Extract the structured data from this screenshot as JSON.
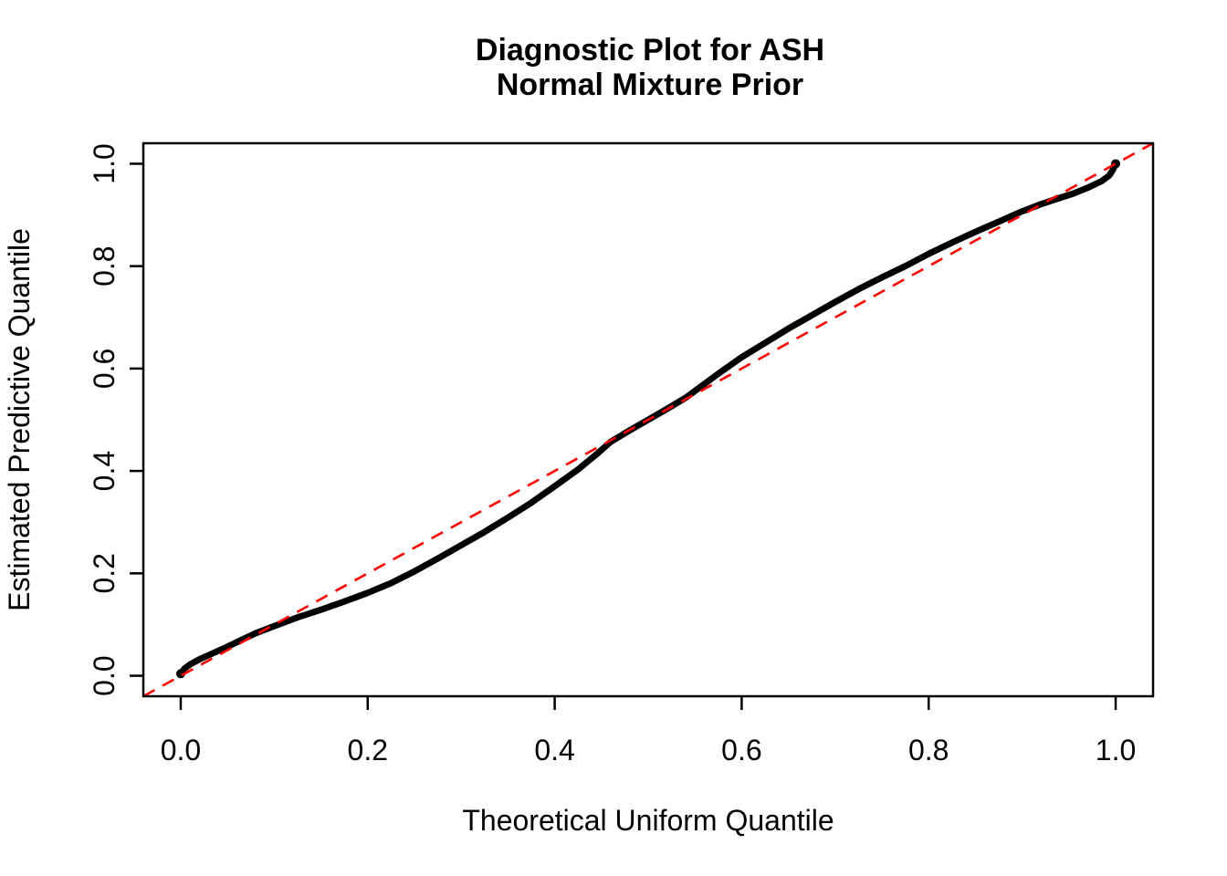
{
  "figure": {
    "title_line1": "Diagnostic Plot for ASH",
    "title_line2": "Normal Mixture Prior",
    "xlabel": "Theoretical Uniform Quantile",
    "ylabel": "Estimated Predictive Quantile"
  },
  "colors": {
    "curve": "#000000",
    "reference_line": "#ff0000",
    "frame": "#000000",
    "background": "#ffffff",
    "text": "#000000"
  },
  "chart_data": {
    "type": "scatter",
    "title": "Diagnostic Plot for ASH\nNormal Mixture Prior",
    "xlabel": "Theoretical Uniform Quantile",
    "ylabel": "Estimated Predictive Quantile",
    "xlim": [
      -0.04,
      1.04
    ],
    "ylim": [
      -0.04,
      1.04
    ],
    "x_tick_values": [
      0.0,
      0.2,
      0.4,
      0.6,
      0.8,
      1.0
    ],
    "x_tick_labels": [
      "0.0",
      "0.2",
      "0.4",
      "0.6",
      "0.8",
      "1.0"
    ],
    "y_tick_values": [
      0.0,
      0.2,
      0.4,
      0.6,
      0.8,
      1.0
    ],
    "y_tick_labels": [
      "0.0",
      "0.2",
      "0.4",
      "0.6",
      "0.8",
      "1.0"
    ],
    "grid": false,
    "legend": "none",
    "series": [
      {
        "name": "estimated predictive quantiles vs theoretical uniform quantiles",
        "color": "#000000",
        "style": "dense-point-curve",
        "line_width": 7,
        "points": [
          [
            0.0,
            0.004
          ],
          [
            0.004,
            0.014
          ],
          [
            0.01,
            0.022
          ],
          [
            0.02,
            0.032
          ],
          [
            0.032,
            0.042
          ],
          [
            0.048,
            0.055
          ],
          [
            0.065,
            0.07
          ],
          [
            0.08,
            0.083
          ],
          [
            0.1,
            0.097
          ],
          [
            0.125,
            0.114
          ],
          [
            0.15,
            0.129
          ],
          [
            0.175,
            0.145
          ],
          [
            0.2,
            0.162
          ],
          [
            0.225,
            0.181
          ],
          [
            0.25,
            0.204
          ],
          [
            0.275,
            0.229
          ],
          [
            0.3,
            0.255
          ],
          [
            0.325,
            0.281
          ],
          [
            0.35,
            0.309
          ],
          [
            0.375,
            0.338
          ],
          [
            0.4,
            0.37
          ],
          [
            0.425,
            0.403
          ],
          [
            0.445,
            0.433
          ],
          [
            0.46,
            0.457
          ],
          [
            0.48,
            0.479
          ],
          [
            0.5,
            0.5
          ],
          [
            0.52,
            0.521
          ],
          [
            0.54,
            0.543
          ],
          [
            0.555,
            0.563
          ],
          [
            0.575,
            0.59
          ],
          [
            0.6,
            0.622
          ],
          [
            0.625,
            0.65
          ],
          [
            0.65,
            0.678
          ],
          [
            0.675,
            0.704
          ],
          [
            0.7,
            0.73
          ],
          [
            0.725,
            0.755
          ],
          [
            0.75,
            0.778
          ],
          [
            0.775,
            0.8
          ],
          [
            0.8,
            0.824
          ],
          [
            0.825,
            0.846
          ],
          [
            0.85,
            0.867
          ],
          [
            0.875,
            0.887
          ],
          [
            0.9,
            0.907
          ],
          [
            0.92,
            0.921
          ],
          [
            0.94,
            0.933
          ],
          [
            0.955,
            0.942
          ],
          [
            0.97,
            0.953
          ],
          [
            0.985,
            0.966
          ],
          [
            0.993,
            0.977
          ],
          [
            0.997,
            0.988
          ],
          [
            1.0,
            1.0
          ]
        ]
      }
    ],
    "reference_line": {
      "name": "y = x diagonal",
      "intercept": 0,
      "slope": 1,
      "color": "#ff0000",
      "style": "dashed",
      "drawn_on_top": true
    }
  }
}
